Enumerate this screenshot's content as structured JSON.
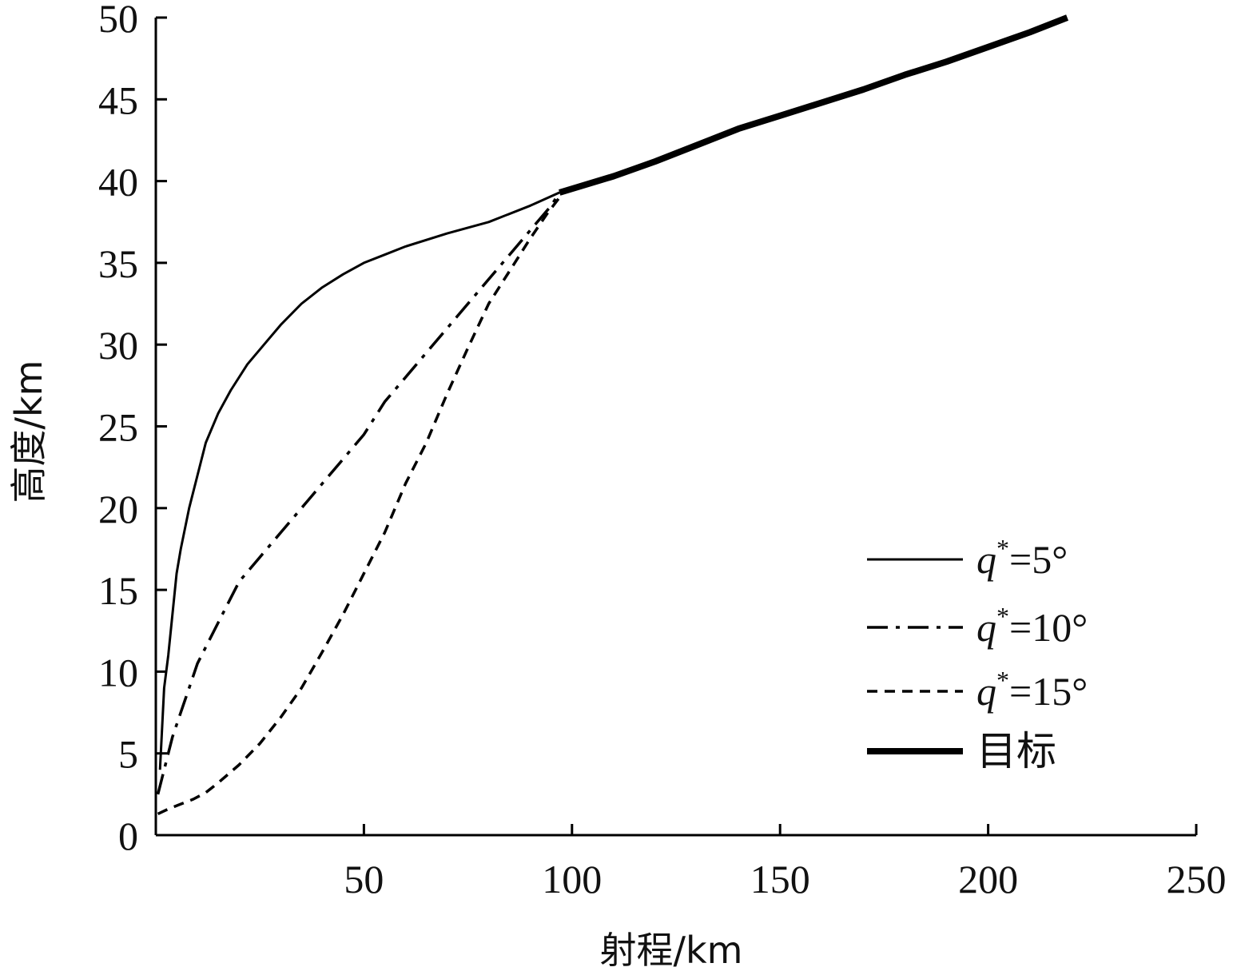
{
  "chart_data": {
    "type": "line",
    "title": "",
    "xlabel": "射程/km",
    "ylabel": "高度/km",
    "xlim": [
      0,
      250
    ],
    "ylim": [
      0,
      50
    ],
    "xticks": [
      "50",
      "100",
      "150",
      "200",
      "250"
    ],
    "yticks": [
      "0",
      "5",
      "10",
      "15",
      "20",
      "25",
      "30",
      "35",
      "40",
      "45",
      "50"
    ],
    "grid": false,
    "legend_position": "lower-right",
    "series": [
      {
        "name": "q*=5°",
        "label_prefix": "q",
        "label_sup": "*",
        "label_suffix": "=5°",
        "style": "solid",
        "points": [
          [
            1,
            4
          ],
          [
            2,
            9
          ],
          [
            3,
            11
          ],
          [
            4,
            13.5
          ],
          [
            5,
            16
          ],
          [
            6,
            17.5
          ],
          [
            8,
            20
          ],
          [
            10,
            22
          ],
          [
            12,
            24
          ],
          [
            15,
            25.8
          ],
          [
            18,
            27.2
          ],
          [
            22,
            28.8
          ],
          [
            26,
            30
          ],
          [
            30,
            31.2
          ],
          [
            35,
            32.5
          ],
          [
            40,
            33.5
          ],
          [
            45,
            34.3
          ],
          [
            50,
            35
          ],
          [
            55,
            35.5
          ],
          [
            60,
            36
          ],
          [
            70,
            36.8
          ],
          [
            80,
            37.5
          ],
          [
            90,
            38.5
          ],
          [
            97,
            39.3
          ]
        ]
      },
      {
        "name": "q*=10°",
        "label_prefix": "q",
        "label_sup": "*",
        "label_suffix": "=10°",
        "style": "dashdot",
        "points": [
          [
            0.5,
            2.5
          ],
          [
            2,
            4
          ],
          [
            4,
            6
          ],
          [
            6,
            7.5
          ],
          [
            8,
            9
          ],
          [
            10,
            10.5
          ],
          [
            12,
            11.5
          ],
          [
            15,
            13
          ],
          [
            20,
            15.5
          ],
          [
            25,
            17
          ],
          [
            30,
            18.5
          ],
          [
            35,
            20
          ],
          [
            40,
            21.5
          ],
          [
            45,
            23
          ],
          [
            50,
            24.5
          ],
          [
            55,
            26.5
          ],
          [
            60,
            28
          ],
          [
            65,
            29.5
          ],
          [
            70,
            31
          ],
          [
            75,
            32.5
          ],
          [
            80,
            34
          ],
          [
            85,
            35.5
          ],
          [
            90,
            37
          ],
          [
            95,
            38.5
          ],
          [
            97,
            39.3
          ]
        ]
      },
      {
        "name": "q*=15°",
        "label_prefix": "q",
        "label_sup": "*",
        "label_suffix": "=15°",
        "style": "dashed",
        "points": [
          [
            0.5,
            1.3
          ],
          [
            3,
            1.6
          ],
          [
            6,
            1.9
          ],
          [
            9,
            2.2
          ],
          [
            12,
            2.6
          ],
          [
            15,
            3.2
          ],
          [
            20,
            4.3
          ],
          [
            25,
            5.6
          ],
          [
            30,
            7.2
          ],
          [
            35,
            9
          ],
          [
            40,
            11.2
          ],
          [
            45,
            13.5
          ],
          [
            50,
            16
          ],
          [
            55,
            18.5
          ],
          [
            60,
            21.5
          ],
          [
            65,
            24
          ],
          [
            70,
            27
          ],
          [
            75,
            29.8
          ],
          [
            80,
            32.5
          ],
          [
            85,
            34.5
          ],
          [
            90,
            36.5
          ],
          [
            94,
            38
          ],
          [
            97,
            39
          ]
        ]
      },
      {
        "name": "目标",
        "style": "thick",
        "points": [
          [
            97,
            39.3
          ],
          [
            110,
            40.3
          ],
          [
            120,
            41.2
          ],
          [
            130,
            42.2
          ],
          [
            140,
            43.2
          ],
          [
            150,
            44
          ],
          [
            160,
            44.8
          ],
          [
            170,
            45.6
          ],
          [
            180,
            46.5
          ],
          [
            190,
            47.3
          ],
          [
            200,
            48.2
          ],
          [
            210,
            49.1
          ],
          [
            219,
            50
          ]
        ]
      }
    ]
  }
}
